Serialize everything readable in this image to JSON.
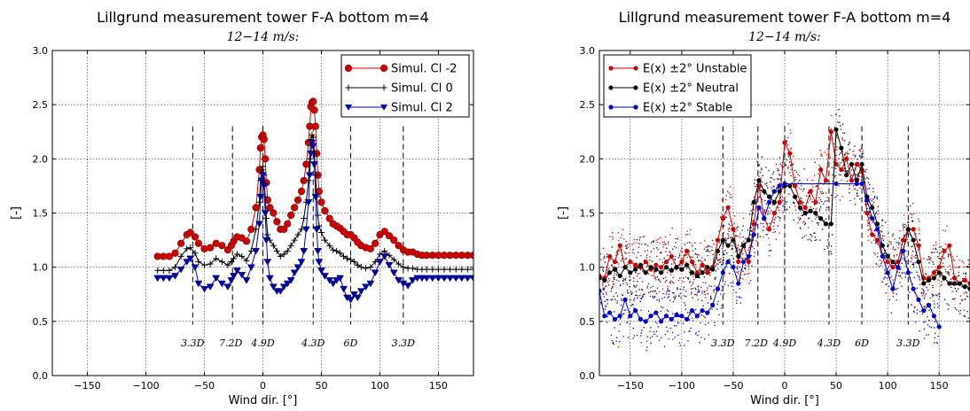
{
  "chart_data": [
    {
      "type": "line",
      "title": "Lillgrund measurement tower F-A bottom m=4",
      "subtitle": "12−14 m/s:",
      "xlabel": "Wind dir. [°]",
      "ylabel": "[-]",
      "xlim": [
        -180,
        180
      ],
      "ylim": [
        0,
        3.0
      ],
      "xticks": [
        -150,
        -100,
        -50,
        0,
        50,
        100,
        150
      ],
      "yticks": [
        0.0,
        0.5,
        1.0,
        1.5,
        2.0,
        2.5,
        3.0
      ],
      "grid": true,
      "legend_position": "top-right",
      "vlines": [
        {
          "x": -60,
          "label": "3.3D"
        },
        {
          "x": -26,
          "label": "7.2D"
        },
        {
          "x": 0,
          "label": "4.9D"
        },
        {
          "x": 43,
          "label": "4.3D"
        },
        {
          "x": 75,
          "label": "6D"
        },
        {
          "x": 120,
          "label": "3.3D"
        }
      ],
      "series": [
        {
          "name": "Simul. Cl -2",
          "color": "#cc0000",
          "marker": "circle",
          "x": [
            -90,
            -85,
            -80,
            -75,
            -70,
            -65,
            -62,
            -58,
            -55,
            -50,
            -45,
            -40,
            -35,
            -30,
            -27,
            -25,
            -22,
            -18,
            -14,
            -10,
            -6,
            -3,
            -2,
            -1,
            0,
            1,
            2,
            3,
            4,
            6,
            9,
            12,
            15,
            18,
            21,
            24,
            27,
            30,
            33,
            35,
            37,
            39,
            40,
            41,
            42,
            43,
            44,
            45,
            46,
            47,
            48,
            50,
            53,
            57,
            60,
            63,
            66,
            69,
            72,
            75,
            78,
            81,
            84,
            88,
            92,
            96,
            100,
            104,
            108,
            112,
            116,
            120,
            124,
            128,
            132,
            136,
            140,
            145,
            150,
            155,
            160,
            165,
            170,
            175,
            180
          ],
          "y": [
            1.1,
            1.1,
            1.1,
            1.13,
            1.22,
            1.3,
            1.32,
            1.28,
            1.22,
            1.17,
            1.18,
            1.22,
            1.2,
            1.16,
            1.2,
            1.24,
            1.28,
            1.27,
            1.24,
            1.35,
            1.55,
            1.9,
            2.1,
            2.2,
            2.22,
            2.18,
            2.0,
            1.78,
            1.62,
            1.55,
            1.5,
            1.42,
            1.35,
            1.35,
            1.4,
            1.48,
            1.55,
            1.62,
            1.7,
            1.8,
            1.95,
            2.15,
            2.3,
            2.48,
            2.52,
            2.53,
            2.45,
            2.3,
            2.05,
            1.85,
            1.7,
            1.6,
            1.52,
            1.45,
            1.4,
            1.38,
            1.36,
            1.33,
            1.3,
            1.3,
            1.27,
            1.23,
            1.2,
            1.18,
            1.17,
            1.22,
            1.3,
            1.33,
            1.29,
            1.25,
            1.2,
            1.16,
            1.14,
            1.14,
            1.12,
            1.11,
            1.11,
            1.11,
            1.11,
            1.11,
            1.11,
            1.11,
            1.11,
            1.11,
            1.11
          ]
        },
        {
          "name": "Simul. Cl 0",
          "color": "#000000",
          "marker": "plus",
          "x": [
            -90,
            -85,
            -80,
            -75,
            -70,
            -65,
            -62,
            -58,
            -55,
            -50,
            -45,
            -40,
            -35,
            -30,
            -27,
            -25,
            -22,
            -18,
            -14,
            -10,
            -6,
            -3,
            -2,
            -1,
            0,
            1,
            2,
            3,
            4,
            6,
            9,
            12,
            15,
            18,
            21,
            24,
            27,
            30,
            33,
            35,
            37,
            39,
            40,
            41,
            42,
            43,
            44,
            45,
            46,
            47,
            48,
            50,
            53,
            57,
            60,
            63,
            66,
            69,
            72,
            75,
            78,
            81,
            84,
            88,
            92,
            96,
            100,
            104,
            108,
            112,
            116,
            120,
            124,
            128,
            132,
            136,
            140,
            145,
            150,
            155,
            160,
            165,
            170,
            175,
            180
          ],
          "y": [
            0.97,
            0.97,
            0.97,
            1.0,
            1.1,
            1.17,
            1.18,
            1.13,
            1.05,
            1.02,
            1.03,
            1.08,
            1.05,
            1.02,
            1.05,
            1.08,
            1.12,
            1.1,
            1.06,
            1.15,
            1.35,
            1.6,
            1.8,
            1.9,
            1.93,
            1.85,
            1.65,
            1.45,
            1.3,
            1.25,
            1.2,
            1.15,
            1.1,
            1.12,
            1.15,
            1.2,
            1.25,
            1.3,
            1.35,
            1.45,
            1.6,
            1.8,
            2.0,
            2.18,
            2.22,
            2.2,
            2.05,
            1.85,
            1.65,
            1.48,
            1.38,
            1.32,
            1.25,
            1.2,
            1.16,
            1.15,
            1.13,
            1.1,
            1.08,
            1.07,
            1.05,
            1.02,
            1.0,
            0.99,
            1.0,
            1.05,
            1.12,
            1.15,
            1.11,
            1.07,
            1.03,
            1.0,
            0.99,
            0.99,
            0.98,
            0.98,
            0.98,
            0.98,
            0.98,
            0.98,
            0.98,
            0.98,
            0.98,
            0.98,
            0.98
          ]
        },
        {
          "name": "Simul. Cl 2",
          "color": "#0000aa",
          "marker": "triangle-down",
          "x": [
            -90,
            -85,
            -80,
            -75,
            -70,
            -65,
            -62,
            -58,
            -55,
            -50,
            -45,
            -40,
            -35,
            -30,
            -27,
            -25,
            -22,
            -18,
            -14,
            -10,
            -6,
            -3,
            -2,
            -1,
            0,
            1,
            2,
            3,
            4,
            6,
            9,
            12,
            15,
            18,
            21,
            24,
            27,
            30,
            33,
            35,
            37,
            39,
            40,
            41,
            42,
            43,
            44,
            45,
            46,
            47,
            48,
            50,
            53,
            57,
            60,
            63,
            66,
            69,
            72,
            75,
            78,
            81,
            84,
            88,
            92,
            96,
            100,
            104,
            108,
            112,
            116,
            120,
            124,
            128,
            132,
            136,
            140,
            145,
            150,
            155,
            160,
            165,
            170,
            175,
            180
          ],
          "y": [
            0.9,
            0.9,
            0.9,
            0.92,
            0.98,
            1.05,
            1.08,
            1.0,
            0.85,
            0.8,
            0.82,
            0.9,
            0.85,
            0.82,
            0.88,
            0.92,
            0.97,
            0.93,
            0.88,
            1.0,
            1.15,
            1.4,
            1.65,
            1.8,
            1.85,
            1.75,
            1.5,
            1.25,
            1.05,
            0.9,
            0.82,
            0.78,
            0.78,
            0.82,
            0.85,
            0.88,
            0.95,
            1.0,
            1.05,
            1.15,
            1.35,
            1.6,
            1.85,
            2.05,
            2.15,
            2.12,
            1.95,
            1.65,
            1.35,
            1.15,
            1.05,
            0.97,
            0.92,
            0.88,
            0.85,
            0.88,
            0.9,
            0.8,
            0.72,
            0.7,
            0.75,
            0.72,
            0.78,
            0.82,
            0.85,
            0.95,
            1.05,
            1.1,
            1.02,
            0.95,
            0.88,
            0.85,
            0.83,
            0.88,
            0.9,
            0.9,
            0.9,
            0.9,
            0.9,
            0.9,
            0.9,
            0.9,
            0.9,
            0.9,
            0.9
          ]
        }
      ]
    },
    {
      "type": "scatter",
      "title": "Lillgrund measurement tower F-A bottom m=4",
      "subtitle": "12−14 m/s:",
      "xlabel": "Wind dir. [°]",
      "ylabel": "[-]",
      "xlim": [
        -180,
        180
      ],
      "ylim": [
        0,
        3.0
      ],
      "xticks": [
        -150,
        -100,
        -50,
        0,
        50,
        100,
        150
      ],
      "yticks": [
        0.0,
        0.5,
        1.0,
        1.5,
        2.0,
        2.5,
        3.0
      ],
      "grid": true,
      "legend_position": "top-left",
      "vlines": [
        {
          "x": -60,
          "label": "3.3D"
        },
        {
          "x": -26,
          "label": "7.2D"
        },
        {
          "x": 0,
          "label": "4.9D"
        },
        {
          "x": 43,
          "label": "4.3D"
        },
        {
          "x": 75,
          "label": "6D"
        },
        {
          "x": 120,
          "label": "3.3D"
        }
      ],
      "series": [
        {
          "name": "E(x) ±2° Unstable",
          "color": "#cc0000",
          "x": [
            -180,
            -175,
            -170,
            -165,
            -160,
            -155,
            -150,
            -145,
            -140,
            -135,
            -130,
            -125,
            -120,
            -115,
            -110,
            -105,
            -100,
            -95,
            -90,
            -85,
            -80,
            -75,
            -70,
            -65,
            -60,
            -55,
            -50,
            -45,
            -40,
            -35,
            -30,
            -25,
            -20,
            -15,
            -10,
            -5,
            0,
            5,
            10,
            15,
            20,
            25,
            30,
            35,
            40,
            45,
            50,
            55,
            60,
            65,
            70,
            75,
            80,
            85,
            90,
            95,
            100,
            105,
            110,
            115,
            120,
            125,
            130,
            135,
            140,
            145,
            150,
            155,
            160,
            165,
            170,
            175,
            180
          ],
          "y": [
            0.92,
            0.9,
            1.1,
            1.05,
            1.2,
            1.0,
            1.05,
            1.02,
            1.0,
            1.05,
            0.98,
            1.02,
            1.0,
            1.05,
            1.1,
            1.0,
            1.05,
            1.15,
            1.05,
            0.95,
            1.02,
            0.95,
            1.0,
            1.25,
            1.45,
            1.55,
            1.35,
            1.05,
            1.2,
            1.05,
            1.4,
            1.75,
            1.45,
            1.35,
            1.5,
            1.6,
            2.15,
            2.05,
            1.75,
            1.6,
            1.55,
            1.7,
            1.6,
            1.9,
            1.8,
            2.25,
            1.95,
            1.9,
            2.0,
            1.8,
            1.95,
            1.9,
            1.5,
            1.3,
            1.25,
            1.1,
            1.05,
            1.0,
            1.05,
            1.25,
            1.35,
            1.35,
            1.2,
            0.9,
            0.9,
            0.95,
            1.0,
            1.15,
            1.2,
            0.9,
            0.85,
            0.88,
            0.85
          ]
        },
        {
          "name": "E(x) ±2° Neutral",
          "color": "#000000",
          "x": [
            -180,
            -175,
            -170,
            -165,
            -160,
            -155,
            -150,
            -145,
            -140,
            -135,
            -130,
            -125,
            -120,
            -115,
            -110,
            -105,
            -100,
            -95,
            -90,
            -85,
            -80,
            -75,
            -70,
            -65,
            -60,
            -55,
            -50,
            -45,
            -40,
            -35,
            -30,
            -25,
            -20,
            -15,
            -10,
            -5,
            0,
            5,
            10,
            15,
            20,
            25,
            30,
            35,
            40,
            45,
            50,
            55,
            60,
            65,
            70,
            75,
            80,
            85,
            90,
            95,
            100,
            105,
            110,
            115,
            120,
            125,
            130,
            135,
            140,
            145,
            150,
            155,
            160,
            165,
            170,
            175,
            180
          ],
          "y": [
            0.9,
            0.88,
            0.95,
            0.98,
            0.92,
            1.0,
            0.95,
            0.98,
            1.02,
            0.95,
            1.0,
            0.98,
            0.95,
            1.0,
            0.97,
            1.0,
            0.98,
            1.02,
            0.95,
            0.92,
            0.95,
            1.0,
            0.98,
            1.15,
            1.25,
            1.2,
            1.25,
            1.1,
            1.2,
            1.25,
            1.6,
            1.8,
            1.7,
            1.65,
            1.6,
            1.7,
            1.75,
            1.75,
            1.65,
            1.55,
            1.5,
            1.52,
            1.5,
            1.45,
            1.4,
            1.4,
            2.27,
            2.1,
            1.85,
            1.95,
            1.8,
            1.95,
            1.65,
            1.55,
            1.4,
            1.2,
            1.1,
            1.05,
            1.0,
            1.15,
            1.35,
            1.25,
            1.05,
            0.85,
            0.88,
            0.9,
            0.95,
            0.9,
            0.85,
            0.85,
            0.85,
            0.82,
            0.8
          ]
        },
        {
          "name": "E(x) ±2° Stable",
          "color": "#0000cc",
          "x": [
            -180,
            -175,
            -170,
            -165,
            -160,
            -155,
            -150,
            -145,
            -140,
            -135,
            -130,
            -125,
            -120,
            -115,
            -110,
            -105,
            -100,
            -95,
            -90,
            -85,
            -80,
            -75,
            -70,
            -65,
            -60,
            -55,
            -50,
            -45,
            -40,
            -35,
            -30,
            -25,
            -20,
            -15,
            -10,
            -5,
            0,
            50,
            70,
            75,
            80,
            85,
            90,
            95,
            100,
            105,
            110,
            115,
            120,
            125,
            130,
            135,
            140,
            145,
            150
          ],
          "y": [
            0.78,
            0.55,
            0.58,
            0.52,
            0.55,
            0.7,
            0.55,
            0.6,
            0.52,
            0.5,
            0.55,
            0.58,
            0.5,
            0.55,
            0.52,
            0.56,
            0.55,
            0.52,
            0.6,
            0.55,
            0.6,
            0.58,
            0.65,
            0.8,
            0.95,
            1.05,
            1.0,
            0.85,
            1.05,
            1.1,
            1.3,
            1.55,
            1.45,
            1.6,
            1.7,
            1.75,
            1.77,
            1.77,
            1.77,
            1.77,
            1.62,
            1.45,
            1.35,
            1.1,
            0.95,
            0.8,
            1.0,
            1.15,
            0.95,
            0.8,
            0.7,
            0.6,
            0.65,
            0.55,
            0.45
          ]
        }
      ]
    }
  ]
}
